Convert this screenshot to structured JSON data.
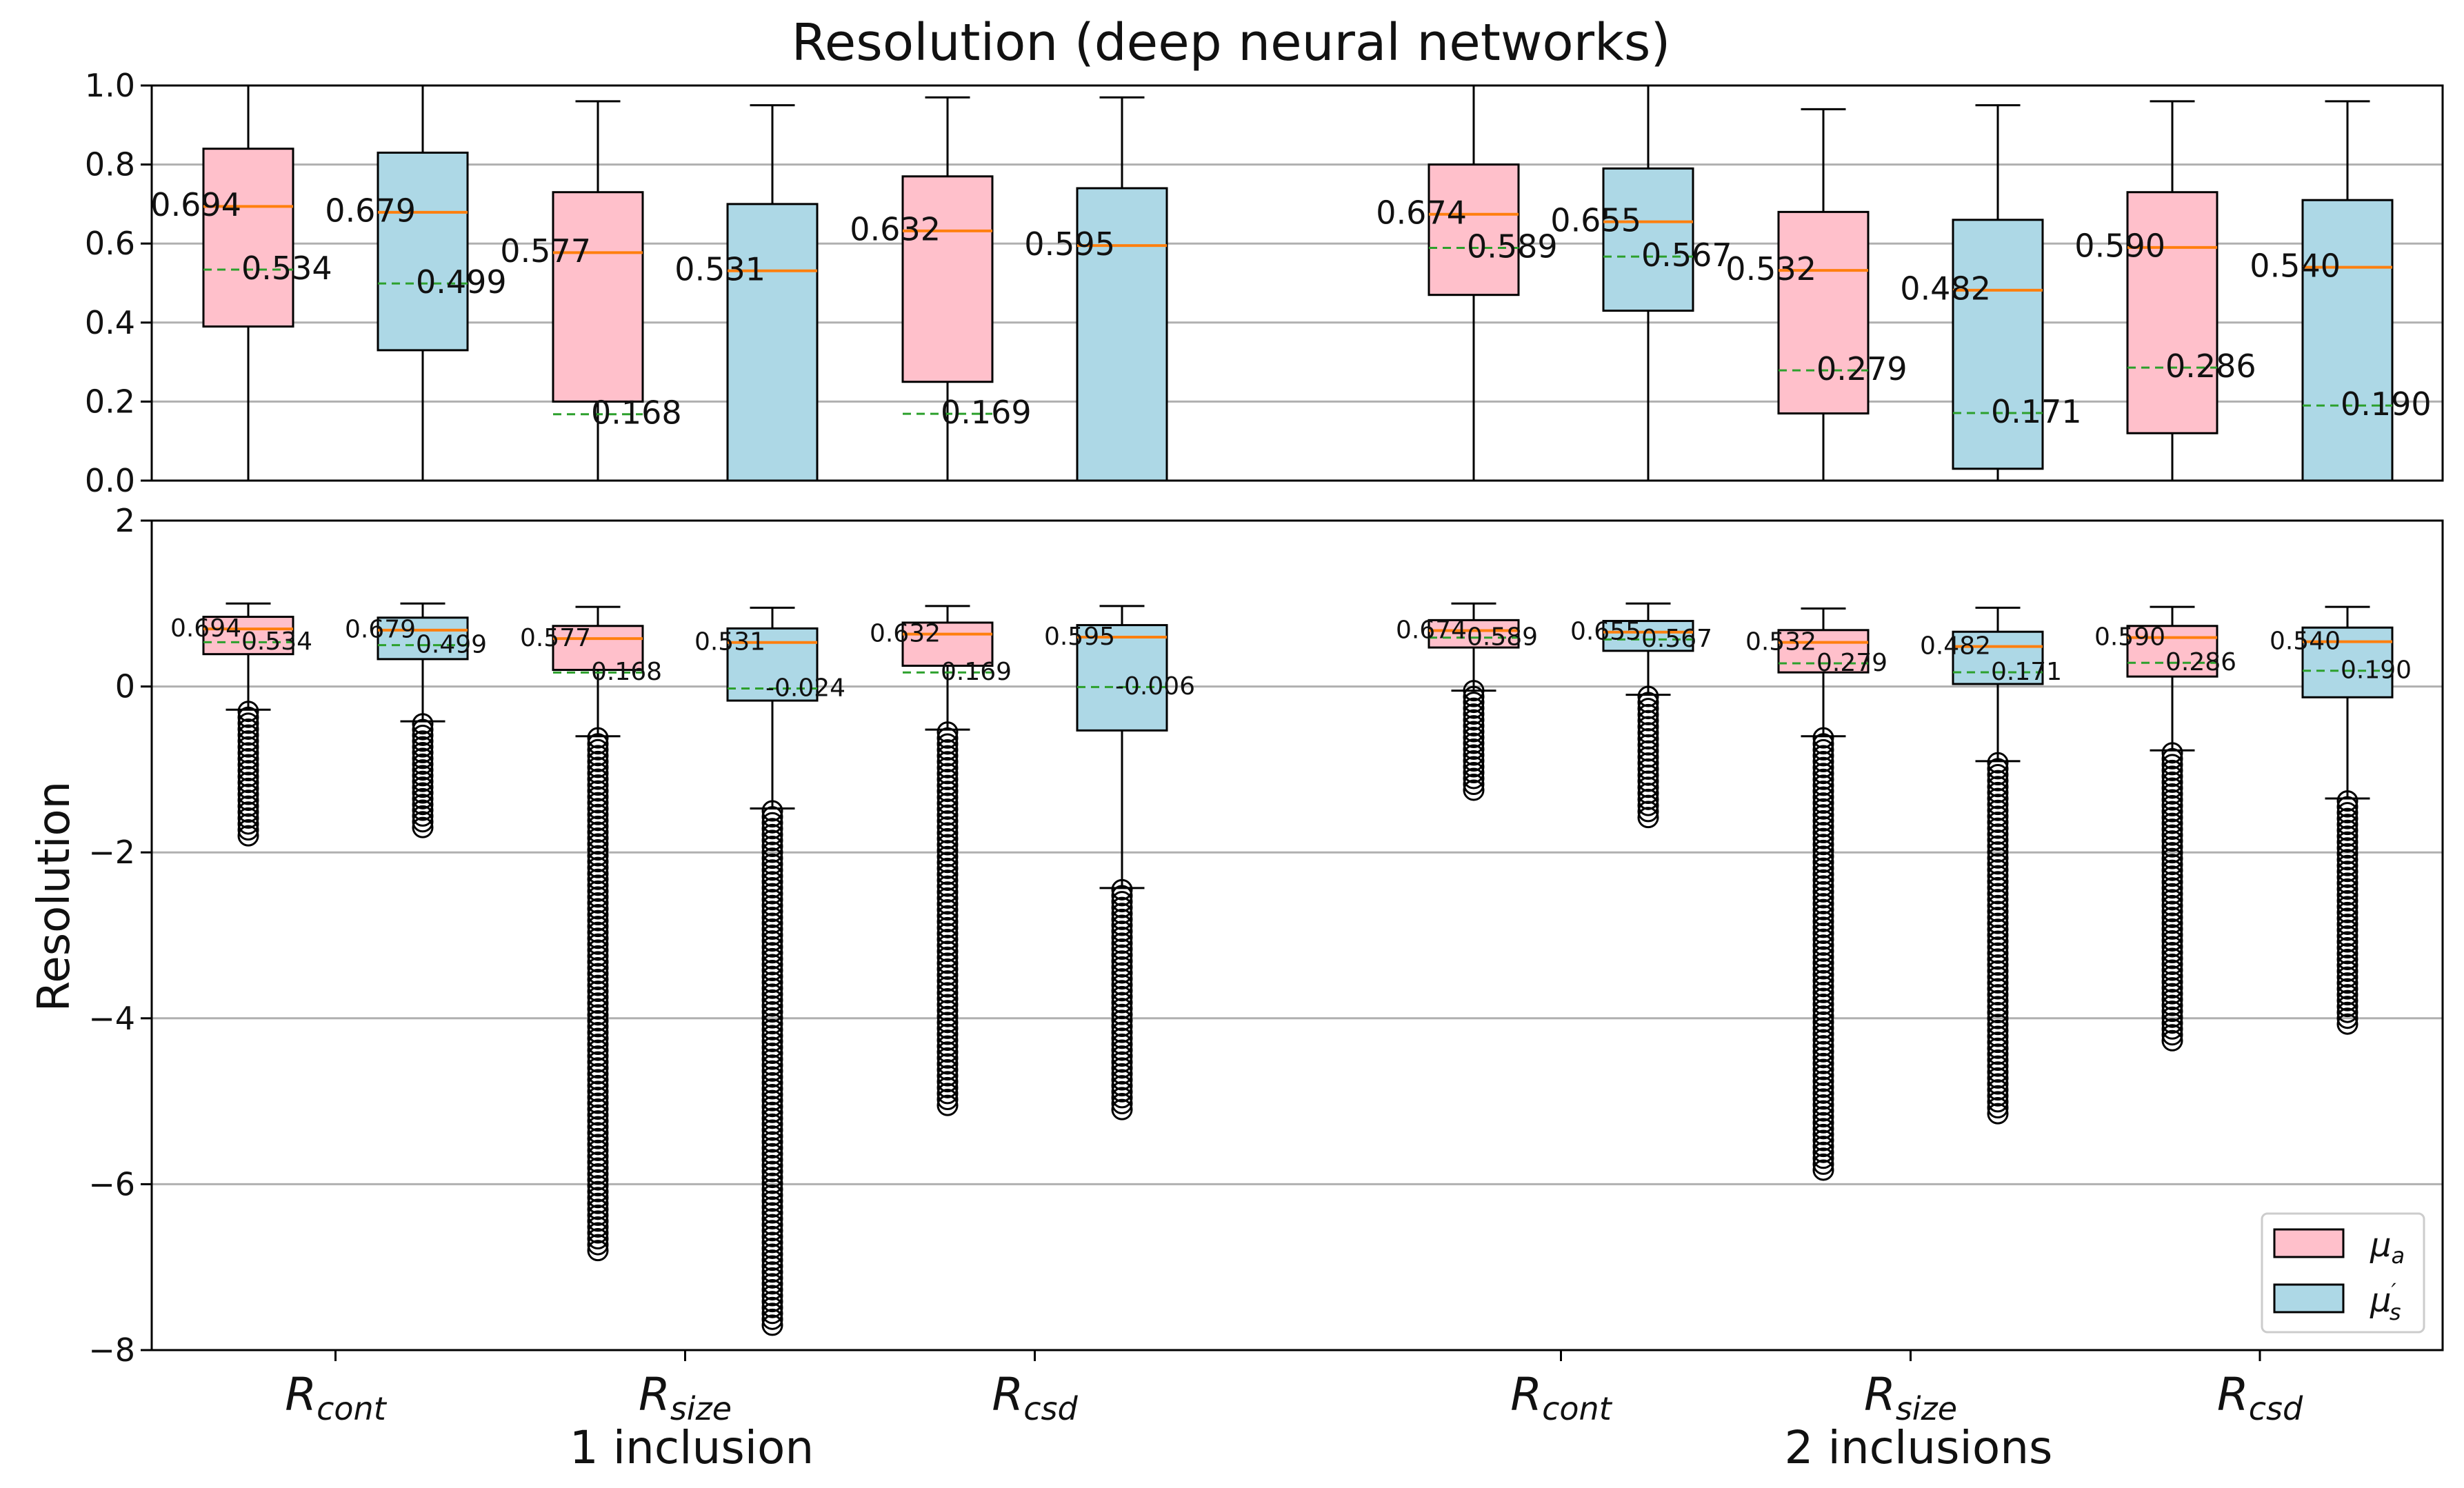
{
  "title": "Resolution (deep neural networks)",
  "ylabel": "Resolution",
  "legend": {
    "placement": "lower-right",
    "entries": [
      {
        "label": "μ",
        "sub": "a",
        "sup": "",
        "color": "#ffc0cb"
      },
      {
        "label": "μ",
        "sub": "s",
        "sup": "′",
        "color": "#add8e6"
      }
    ]
  },
  "colors": {
    "pink": "#ffc0cb",
    "blue": "#add8e6",
    "median": "#ff7f0e",
    "mean": "#2ca02c",
    "grid": "#b0b0b0",
    "axis": "#000000"
  },
  "x_tick_labels": [
    {
      "main": "R",
      "sub": "cont"
    },
    {
      "main": "R",
      "sub": "size"
    },
    {
      "main": "R",
      "sub": "csd"
    },
    {
      "main": "R",
      "sub": "cont"
    },
    {
      "main": "R",
      "sub": "size"
    },
    {
      "main": "R",
      "sub": "csd"
    }
  ],
  "group_labels": [
    "1 inclusion",
    "2 inclusions"
  ],
  "chart_data": [
    {
      "type": "box",
      "panel": "top",
      "title": "Resolution (deep neural networks)",
      "ylim": [
        0,
        1
      ],
      "yticks": [
        "0.0",
        "0.2",
        "0.4",
        "0.6",
        "0.8",
        "1.0"
      ],
      "grid": true,
      "boxes": [
        {
          "category": "R_cont",
          "group": "1 inclusion",
          "param": "mu_a",
          "q1": 0.39,
          "q3": 0.84,
          "whislo": 0.0,
          "whishi": 1.0,
          "median": 0.694,
          "mean": 0.534,
          "median_label": "0.694",
          "mean_label": "0.534"
        },
        {
          "category": "R_cont",
          "group": "1 inclusion",
          "param": "mu_s",
          "q1": 0.33,
          "q3": 0.83,
          "whislo": 0.0,
          "whishi": 1.0,
          "median": 0.679,
          "mean": 0.499,
          "median_label": "0.679",
          "mean_label": "0.499"
        },
        {
          "category": "R_size",
          "group": "1 inclusion",
          "param": "mu_a",
          "q1": 0.2,
          "q3": 0.73,
          "whislo": 0.0,
          "whishi": 0.96,
          "median": 0.577,
          "mean": 0.168,
          "median_label": "0.577",
          "mean_label": "0.168"
        },
        {
          "category": "R_size",
          "group": "1 inclusion",
          "param": "mu_s",
          "q1": 0.0,
          "q3": 0.7,
          "whislo": 0.0,
          "whishi": 0.95,
          "median": 0.531,
          "mean": null,
          "median_label": "0.531",
          "mean_label": ""
        },
        {
          "category": "R_csd",
          "group": "1 inclusion",
          "param": "mu_a",
          "q1": 0.25,
          "q3": 0.77,
          "whislo": 0.0,
          "whishi": 0.97,
          "median": 0.632,
          "mean": 0.169,
          "median_label": "0.632",
          "mean_label": "0.169"
        },
        {
          "category": "R_csd",
          "group": "1 inclusion",
          "param": "mu_s",
          "q1": 0.0,
          "q3": 0.74,
          "whislo": 0.0,
          "whishi": 0.97,
          "median": 0.595,
          "mean": null,
          "median_label": "0.595",
          "mean_label": ""
        },
        {
          "category": "R_cont",
          "group": "2 inclusions",
          "param": "mu_a",
          "q1": 0.47,
          "q3": 0.8,
          "whislo": 0.0,
          "whishi": 1.0,
          "median": 0.674,
          "mean": 0.589,
          "median_label": "0.674",
          "mean_label": "0.589"
        },
        {
          "category": "R_cont",
          "group": "2 inclusions",
          "param": "mu_s",
          "q1": 0.43,
          "q3": 0.79,
          "whislo": 0.0,
          "whishi": 1.0,
          "median": 0.655,
          "mean": 0.567,
          "median_label": "0.655",
          "mean_label": "0.567"
        },
        {
          "category": "R_size",
          "group": "2 inclusions",
          "param": "mu_a",
          "q1": 0.17,
          "q3": 0.68,
          "whislo": 0.0,
          "whishi": 0.94,
          "median": 0.532,
          "mean": 0.279,
          "median_label": "0.532",
          "mean_label": "0.279"
        },
        {
          "category": "R_size",
          "group": "2 inclusions",
          "param": "mu_s",
          "q1": 0.03,
          "q3": 0.66,
          "whislo": 0.0,
          "whishi": 0.95,
          "median": 0.482,
          "mean": 0.171,
          "median_label": "0.482",
          "mean_label": "0.171"
        },
        {
          "category": "R_csd",
          "group": "2 inclusions",
          "param": "mu_a",
          "q1": 0.12,
          "q3": 0.73,
          "whislo": 0.0,
          "whishi": 0.96,
          "median": 0.59,
          "mean": 0.286,
          "median_label": "0.590",
          "mean_label": "0.286"
        },
        {
          "category": "R_csd",
          "group": "2 inclusions",
          "param": "mu_s",
          "q1": 0.0,
          "q3": 0.71,
          "whislo": 0.0,
          "whishi": 0.96,
          "median": 0.54,
          "mean": 0.19,
          "median_label": "0.540",
          "mean_label": "0.190"
        }
      ]
    },
    {
      "type": "box",
      "panel": "bottom",
      "ylabel": "Resolution",
      "ylim": [
        -8,
        2
      ],
      "yticks": [
        "−8",
        "−6",
        "−4",
        "−2",
        "0",
        "2"
      ],
      "grid": true,
      "boxes": [
        {
          "category": "R_cont",
          "group": "1 inclusion",
          "param": "mu_a",
          "q1": 0.39,
          "q3": 0.84,
          "whislo": -0.28,
          "whishi": 1.0,
          "median": 0.694,
          "mean": 0.534,
          "median_label": "0.694",
          "mean_label": "0.534",
          "flier_range": [
            -1.8,
            -0.3
          ]
        },
        {
          "category": "R_cont",
          "group": "1 inclusion",
          "param": "mu_s",
          "q1": 0.33,
          "q3": 0.83,
          "whislo": -0.42,
          "whishi": 1.0,
          "median": 0.679,
          "mean": 0.499,
          "median_label": "0.679",
          "mean_label": "0.499",
          "flier_range": [
            -1.7,
            -0.45
          ]
        },
        {
          "category": "R_size",
          "group": "1 inclusion",
          "param": "mu_a",
          "q1": 0.2,
          "q3": 0.73,
          "whislo": -0.6,
          "whishi": 0.96,
          "median": 0.577,
          "mean": 0.168,
          "median_label": "0.577",
          "mean_label": "0.168",
          "flier_range": [
            -6.8,
            -0.62
          ]
        },
        {
          "category": "R_size",
          "group": "1 inclusion",
          "param": "mu_s",
          "q1": -0.17,
          "q3": 0.7,
          "whislo": -1.47,
          "whishi": 0.95,
          "median": 0.531,
          "mean": -0.024,
          "median_label": "0.531",
          "mean_label": "-0.024",
          "flier_range": [
            -7.7,
            -1.5
          ]
        },
        {
          "category": "R_csd",
          "group": "1 inclusion",
          "param": "mu_a",
          "q1": 0.25,
          "q3": 0.77,
          "whislo": -0.52,
          "whishi": 0.97,
          "median": 0.632,
          "mean": 0.169,
          "median_label": "0.632",
          "mean_label": "0.169",
          "flier_range": [
            -5.05,
            -0.55
          ]
        },
        {
          "category": "R_csd",
          "group": "1 inclusion",
          "param": "mu_s",
          "q1": -0.53,
          "q3": 0.74,
          "whislo": -2.43,
          "whishi": 0.97,
          "median": 0.595,
          "mean": -0.006,
          "median_label": "0.595",
          "mean_label": "-0.006",
          "flier_range": [
            -5.1,
            -2.45
          ]
        },
        {
          "category": "R_cont",
          "group": "2 inclusions",
          "param": "mu_a",
          "q1": 0.47,
          "q3": 0.8,
          "whislo": -0.05,
          "whishi": 1.0,
          "median": 0.674,
          "mean": 0.589,
          "median_label": "0.674",
          "mean_label": "0.589",
          "flier_range": [
            -1.25,
            -0.05
          ]
        },
        {
          "category": "R_cont",
          "group": "2 inclusions",
          "param": "mu_s",
          "q1": 0.43,
          "q3": 0.79,
          "whislo": -0.1,
          "whishi": 1.0,
          "median": 0.655,
          "mean": 0.567,
          "median_label": "0.655",
          "mean_label": "0.567",
          "flier_range": [
            -1.58,
            -0.12
          ]
        },
        {
          "category": "R_size",
          "group": "2 inclusions",
          "param": "mu_a",
          "q1": 0.17,
          "q3": 0.68,
          "whislo": -0.6,
          "whishi": 0.94,
          "median": 0.532,
          "mean": 0.279,
          "median_label": "0.532",
          "mean_label": "0.279",
          "flier_range": [
            -5.83,
            -0.62
          ]
        },
        {
          "category": "R_size",
          "group": "2 inclusions",
          "param": "mu_s",
          "q1": 0.03,
          "q3": 0.66,
          "whislo": -0.9,
          "whishi": 0.95,
          "median": 0.482,
          "mean": 0.171,
          "median_label": "0.482",
          "mean_label": "0.171",
          "flier_range": [
            -5.15,
            -0.92
          ]
        },
        {
          "category": "R_csd",
          "group": "2 inclusions",
          "param": "mu_a",
          "q1": 0.12,
          "q3": 0.73,
          "whislo": -0.77,
          "whishi": 0.96,
          "median": 0.59,
          "mean": 0.286,
          "median_label": "0.590",
          "mean_label": "0.286",
          "flier_range": [
            -4.27,
            -0.8
          ]
        },
        {
          "category": "R_csd",
          "group": "2 inclusions",
          "param": "mu_s",
          "q1": -0.13,
          "q3": 0.71,
          "whislo": -1.35,
          "whishi": 0.96,
          "median": 0.54,
          "mean": 0.19,
          "median_label": "0.540",
          "mean_label": "0.190",
          "flier_range": [
            -4.07,
            -1.38
          ]
        }
      ]
    }
  ]
}
